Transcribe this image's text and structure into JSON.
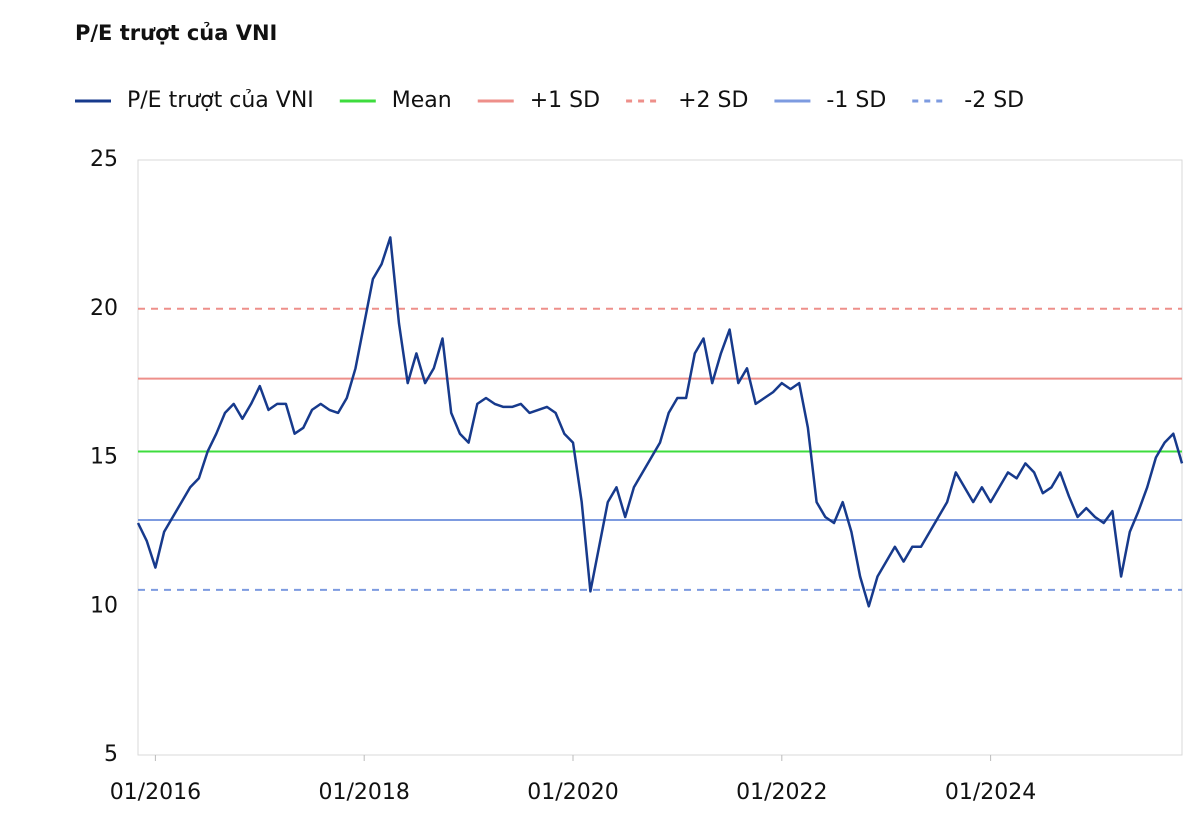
{
  "chart_data": {
    "type": "line",
    "title": "P/E trượt của VNI",
    "x": [
      "2015-11",
      "2015-12",
      "2016-01",
      "2016-02",
      "2016-03",
      "2016-04",
      "2016-05",
      "2016-06",
      "2016-07",
      "2016-08",
      "2016-09",
      "2016-10",
      "2016-11",
      "2016-12",
      "2017-01",
      "2017-02",
      "2017-03",
      "2017-04",
      "2017-05",
      "2017-06",
      "2017-07",
      "2017-08",
      "2017-09",
      "2017-10",
      "2017-11",
      "2017-12",
      "2018-01",
      "2018-02",
      "2018-03",
      "2018-04",
      "2018-05",
      "2018-06",
      "2018-07",
      "2018-08",
      "2018-09",
      "2018-10",
      "2018-11",
      "2018-12",
      "2019-01",
      "2019-02",
      "2019-03",
      "2019-04",
      "2019-05",
      "2019-06",
      "2019-07",
      "2019-08",
      "2019-09",
      "2019-10",
      "2019-11",
      "2019-12",
      "2020-01",
      "2020-02",
      "2020-03",
      "2020-04",
      "2020-05",
      "2020-06",
      "2020-07",
      "2020-08",
      "2020-09",
      "2020-10",
      "2020-11",
      "2020-12",
      "2021-01",
      "2021-02",
      "2021-03",
      "2021-04",
      "2021-05",
      "2021-06",
      "2021-07",
      "2021-08",
      "2021-09",
      "2021-10",
      "2021-11",
      "2021-12",
      "2022-01",
      "2022-02",
      "2022-03",
      "2022-04",
      "2022-05",
      "2022-06",
      "2022-07",
      "2022-08",
      "2022-09",
      "2022-10",
      "2022-11",
      "2022-12",
      "2023-01",
      "2023-02",
      "2023-03",
      "2023-04",
      "2023-05",
      "2023-06",
      "2023-07",
      "2023-08",
      "2023-09",
      "2023-10",
      "2023-11",
      "2023-12",
      "2024-01",
      "2024-02",
      "2024-03",
      "2024-04",
      "2024-05",
      "2024-06",
      "2024-07",
      "2024-08",
      "2024-09",
      "2024-10",
      "2024-11",
      "2024-12",
      "2025-01",
      "2025-02",
      "2025-03",
      "2025-04",
      "2025-05",
      "2025-06",
      "2025-07",
      "2025-08",
      "2025-09",
      "2025-10",
      "2025-11"
    ],
    "series": [
      {
        "name": "P/E trượt của VNI",
        "color": "#173a8c",
        "values": [
          12.8,
          12.2,
          11.3,
          12.5,
          13.0,
          13.5,
          14.0,
          14.3,
          15.2,
          15.8,
          16.5,
          16.8,
          16.3,
          16.8,
          17.4,
          16.6,
          16.8,
          16.8,
          15.8,
          16.0,
          16.6,
          16.8,
          16.6,
          16.5,
          17.0,
          18.0,
          19.5,
          21.0,
          21.5,
          22.4,
          19.5,
          17.5,
          18.5,
          17.5,
          18.0,
          19.0,
          16.5,
          15.8,
          15.5,
          16.8,
          17.0,
          16.8,
          16.7,
          16.7,
          16.8,
          16.5,
          16.6,
          16.7,
          16.5,
          15.8,
          15.5,
          13.5,
          10.5,
          12.0,
          13.5,
          14.0,
          13.0,
          14.0,
          14.5,
          15.0,
          15.5,
          16.5,
          17.0,
          17.0,
          18.5,
          19.0,
          17.5,
          18.5,
          19.3,
          17.5,
          18.0,
          16.8,
          17.0,
          17.2,
          17.5,
          17.3,
          17.5,
          16.0,
          13.5,
          13.0,
          12.8,
          13.5,
          12.5,
          11.0,
          10.0,
          11.0,
          11.5,
          12.0,
          11.5,
          12.0,
          12.0,
          12.5,
          13.0,
          13.5,
          14.5,
          14.0,
          13.5,
          14.0,
          13.5,
          14.0,
          14.5,
          14.3,
          14.8,
          14.5,
          13.8,
          14.0,
          14.5,
          13.7,
          13.0,
          13.3,
          13.0,
          12.8,
          13.2,
          11.0,
          12.5,
          13.2,
          14.0,
          15.0,
          15.5,
          15.8,
          14.8
        ]
      }
    ],
    "reference_lines": [
      {
        "name": "Mean",
        "color": "#3ddc3d",
        "value": 15.2,
        "dashed": false
      },
      {
        "name": "+1 SD",
        "color": "#ee8f8a",
        "value": 17.65,
        "dashed": false
      },
      {
        "name": "+2 SD",
        "color": "#ee8f8a",
        "value": 20.0,
        "dashed": true
      },
      {
        "name": "-1 SD",
        "color": "#7d9be0",
        "value": 12.9,
        "dashed": false
      },
      {
        "name": "-2 SD",
        "color": "#7d9be0",
        "value": 10.55,
        "dashed": true
      }
    ],
    "xlim": [
      "2015-11",
      "2025-11"
    ],
    "xticks": [
      {
        "value": "2016-01",
        "label": "01/2016"
      },
      {
        "value": "2018-01",
        "label": "01/2018"
      },
      {
        "value": "2020-01",
        "label": "01/2020"
      },
      {
        "value": "2022-01",
        "label": "01/2022"
      },
      {
        "value": "2024-01",
        "label": "01/2024"
      }
    ],
    "ylim": [
      5,
      25
    ],
    "yticks": [
      5,
      10,
      15,
      20,
      25
    ],
    "grid": false
  }
}
